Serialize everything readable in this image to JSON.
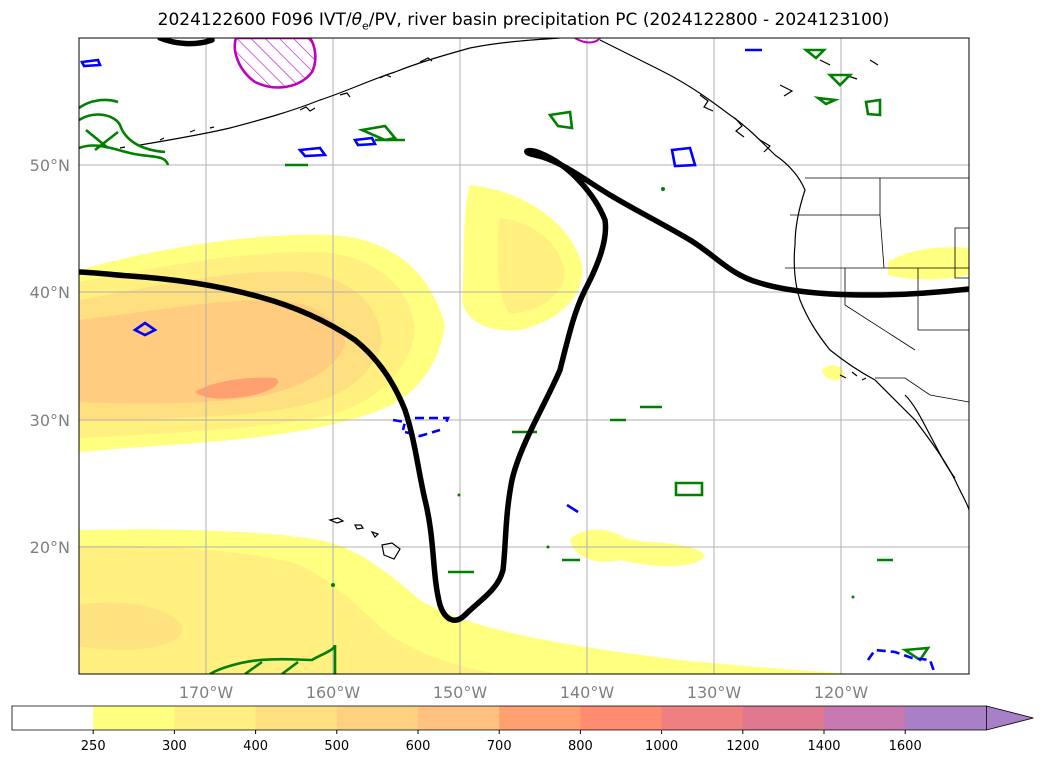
{
  "title": {
    "prefix": "2024122600 F096 IVT/",
    "theta": "θ",
    "theta_sub": "e",
    "suffix": "/PV, river basin precipitation PC (2024122800 - 2024123100)"
  },
  "map": {
    "lon_range": [
      -180,
      -110
    ],
    "lat_range": [
      10,
      60
    ],
    "lat_ticks": [
      {
        "value": 50,
        "label": "50°N"
      },
      {
        "value": 40,
        "label": "40°N"
      },
      {
        "value": 30,
        "label": "30°N"
      },
      {
        "value": 20,
        "label": "20°N"
      }
    ],
    "lon_ticks": [
      {
        "value": -170,
        "label": "170°W"
      },
      {
        "value": -160,
        "label": "160°W"
      },
      {
        "value": -150,
        "label": "150°W"
      },
      {
        "value": -140,
        "label": "140°W"
      },
      {
        "value": -130,
        "label": "130°W"
      },
      {
        "value": -120,
        "label": "120°W"
      }
    ],
    "grid": true
  },
  "colorbar": {
    "levels": [
      "250",
      "300",
      "400",
      "500",
      "600",
      "700",
      "800",
      "1000",
      "1200",
      "1400",
      "1600"
    ],
    "colors": [
      "#ffffff",
      "#ffff80",
      "#fff080",
      "#ffe080",
      "#ffd080",
      "#ffc080",
      "#ffa070",
      "#ff8c70",
      "#f08080",
      "#e07890",
      "#c878b0",
      "#a880c8"
    ],
    "extend": "max"
  },
  "colors": {
    "ivt_fill_1": "#ffff80",
    "ivt_fill_2": "#fff080",
    "ivt_fill_3": "#ffe080",
    "ivt_fill_4": "#ffc880",
    "ivt_fill_5": "#ffa070",
    "pv_contour": "#000000",
    "theta_contour_green": "#008000",
    "theta_contour_blue": "#0000ff",
    "hatch_magenta": "#c000c0"
  }
}
